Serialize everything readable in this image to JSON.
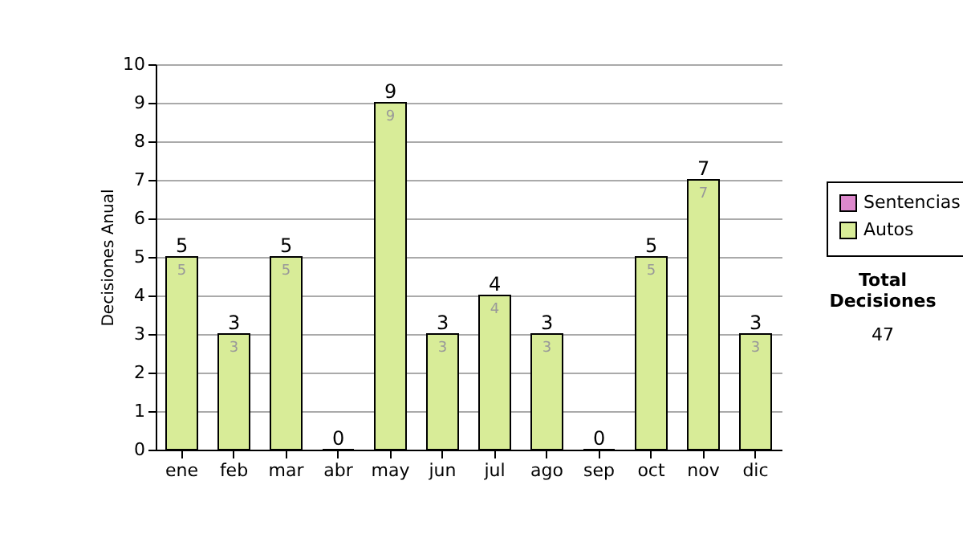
{
  "chart_data": {
    "type": "bar",
    "ylabel": "Decisiones Anual",
    "categories": [
      "ene",
      "feb",
      "mar",
      "abr",
      "may",
      "jun",
      "jul",
      "ago",
      "sep",
      "oct",
      "nov",
      "dic"
    ],
    "series": [
      {
        "name": "Sentencias",
        "color": "#dd88cc",
        "values": [
          null,
          null,
          null,
          null,
          null,
          null,
          null,
          null,
          null,
          null,
          null,
          null
        ]
      },
      {
        "name": "Autos",
        "color": "#d8ec98",
        "values": [
          5,
          3,
          5,
          0,
          9,
          3,
          4,
          3,
          0,
          5,
          7,
          3
        ],
        "value_labels": [
          "5",
          "3",
          "5",
          null,
          "9",
          "3",
          "4",
          "3",
          null,
          "5",
          "7",
          "3"
        ]
      }
    ],
    "totals": [
      "5",
      "3",
      "5",
      "0",
      "9",
      "3",
      "4",
      "3",
      "0",
      "5",
      "7",
      "3"
    ],
    "ylim": [
      0,
      10
    ],
    "yticks": [
      0,
      1,
      2,
      3,
      4,
      5,
      6,
      7,
      8,
      9,
      10
    ],
    "grid": "y",
    "legend": "right",
    "annotations": [
      "Total Decisiones",
      "47"
    ]
  }
}
